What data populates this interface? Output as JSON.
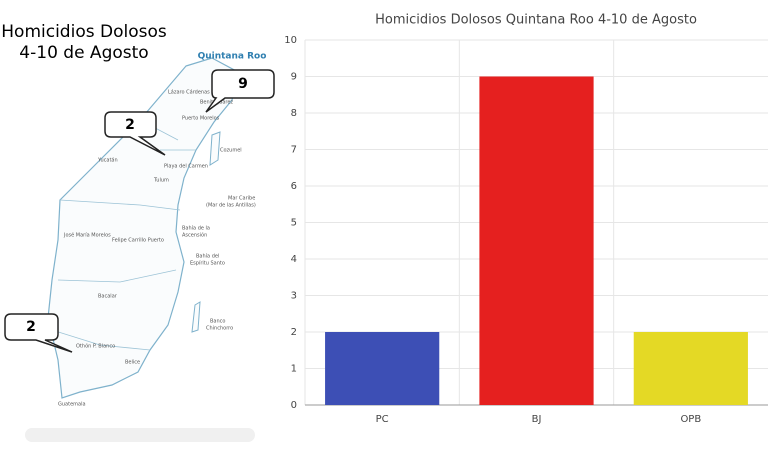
{
  "map": {
    "title": [
      "Homicidios Dolosos",
      "4-10 de Agosto"
    ],
    "state": "Quintana Roo",
    "callouts": [
      9,
      2,
      2
    ],
    "places": [
      "Benito Juárez",
      "Puerto Morelos",
      "Playa del Carmen",
      "Cozumel",
      "Tulum",
      "Yucatán",
      "Mar Caribe",
      "(Mar de las Antillas)",
      "Bahía de la",
      "Ascensión",
      "Felipe Carrillo Puerto",
      "Bahía del",
      "Espíritu Santo",
      "José María Morelos",
      "Bacalar",
      "Othón P. Blanco",
      "Belice",
      "Banco",
      "Chinchorro",
      "Guatemala",
      "Lázaro Cárdenas"
    ]
  },
  "chart_data": {
    "type": "bar",
    "title": "Homicidios Dolosos Quintana Roo 4-10 de Agosto",
    "categories": [
      "PC",
      "BJ",
      "OPB"
    ],
    "values": [
      2,
      9,
      2
    ],
    "colors": [
      "#3d4fb5",
      "#e5201f",
      "#e4d925"
    ],
    "ylim": [
      0,
      10
    ],
    "yticks": [
      0,
      1,
      2,
      3,
      4,
      5,
      6,
      7,
      8,
      9,
      10
    ],
    "grid": true
  }
}
